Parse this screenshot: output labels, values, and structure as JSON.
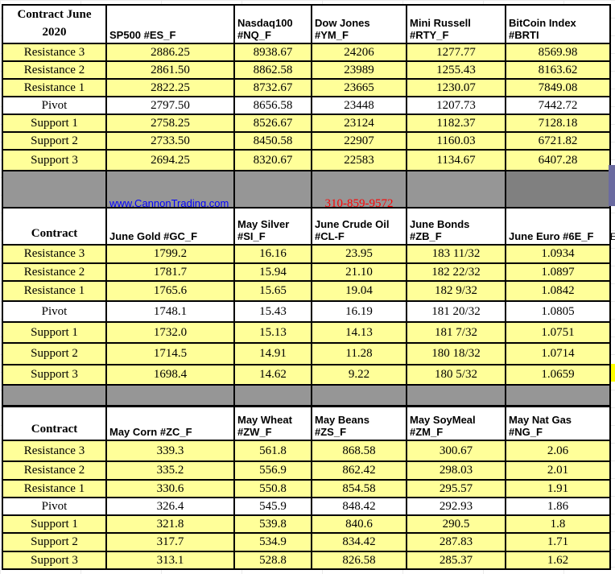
{
  "colors": {
    "level_fill": "#ffff99",
    "pivot_fill": "#ffffff",
    "separator": "#969696",
    "link": "#0000ff",
    "phone": "#ff0000"
  },
  "sections": [
    {
      "headers": [
        "Contract June\n2020",
        "SP500 #ES_F",
        "Nasdaq100\n#NQ_F",
        "Dow Jones\n#YM_F",
        "Mini Russell\n#RTY_F",
        "BitCoin Index\n#BRTI"
      ],
      "rows": [
        [
          "Resistance 3",
          "2886.25",
          "8938.67",
          "24206",
          "1277.77",
          "8569.98"
        ],
        [
          "Resistance 2",
          "2861.50",
          "8862.58",
          "23989",
          "1255.43",
          "8163.62"
        ],
        [
          "Resistance 1",
          "2822.25",
          "8732.67",
          "23665",
          "1230.07",
          "7849.08"
        ],
        [
          "Pivot",
          "2797.50",
          "8656.58",
          "23448",
          "1207.73",
          "7442.72"
        ],
        [
          "Support 1",
          "2758.25",
          "8526.67",
          "23124",
          "1182.37",
          "7128.18"
        ],
        [
          "Support 2",
          "2733.50",
          "8450.58",
          "22907",
          "1160.03",
          "6721.82"
        ],
        [
          "Support 3",
          "2694.25",
          "8320.67",
          "22583",
          "1134.67",
          "6407.28"
        ]
      ]
    },
    {
      "headers": [
        "Contract",
        "June Gold #GC_F",
        "May Silver\n#SI_F",
        "June Crude Oil\n#CL-F",
        "June Bonds\n#ZB_F",
        "June  Euro #6E_F"
      ],
      "rows": [
        [
          "Resistance 3",
          "1799.2",
          "16.16",
          "23.95",
          "183 11/32",
          "1.0934"
        ],
        [
          "Resistance 2",
          "1781.7",
          "15.94",
          "21.10",
          "182 22/32",
          "1.0897"
        ],
        [
          "Resistance 1",
          "1765.6",
          "15.65",
          "19.04",
          "182  9/32",
          "1.0842"
        ],
        [
          "Pivot",
          "1748.1",
          "15.43",
          "16.19",
          "181 20/32",
          "1.0805"
        ],
        [
          "Support 1",
          "1732.0",
          "15.13",
          "14.13",
          "181  7/32",
          "1.0751"
        ],
        [
          "Support 2",
          "1714.5",
          "14.91",
          "11.28",
          "180 18/32",
          "1.0714"
        ],
        [
          "Support 3",
          "1698.4",
          "14.62",
          "9.22",
          "180   5/32",
          "1.0659"
        ]
      ]
    },
    {
      "headers": [
        "Contract",
        "May Corn #ZC_F",
        "May  Wheat\n#ZW_F",
        "May Beans #ZS_F",
        "May  SoyMeal\n#ZM_F",
        "May Nat Gas #NG_F"
      ],
      "rows": [
        [
          "Resistance 3",
          "339.3",
          "561.8",
          "868.58",
          "300.67",
          "2.06"
        ],
        [
          "Resistance 2",
          "335.2",
          "556.9",
          "862.42",
          "298.03",
          "2.01"
        ],
        [
          "Resistance 1",
          "330.6",
          "550.8",
          "854.58",
          "295.57",
          "1.91"
        ],
        [
          "Pivot",
          "326.4",
          "545.9",
          "848.42",
          "292.93",
          "1.86"
        ],
        [
          "Support 1",
          "321.8",
          "539.8",
          "840.6",
          "290.5",
          "1.8"
        ],
        [
          "Support 2",
          "317.7",
          "534.9",
          "834.42",
          "287.83",
          "1.71"
        ],
        [
          "Support 3",
          "313.1",
          "528.8",
          "826.58",
          "285.37",
          "1.62"
        ]
      ]
    }
  ],
  "banner": {
    "website": "www.CannonTrading.com",
    "phone": "310-859-9572"
  },
  "edge_text": "E"
}
